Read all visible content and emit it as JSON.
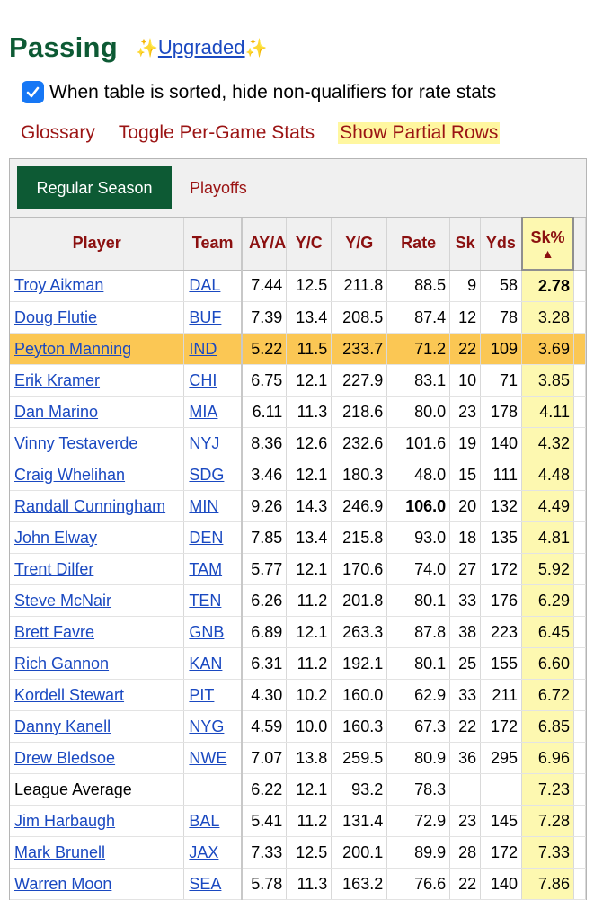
{
  "header": {
    "title": "Passing",
    "sparkle_left": "✨",
    "upgraded_label": "Upgraded",
    "sparkle_right": "✨"
  },
  "option": {
    "checked": true,
    "label": "When table is sorted, hide non-qualifiers for rate stats"
  },
  "links": {
    "glossary": "Glossary",
    "toggle": "Toggle Per-Game Stats",
    "partial": "Show Partial Rows"
  },
  "tabs": {
    "active": "Regular Season",
    "inactive": "Playoffs"
  },
  "columns": {
    "player": "Player",
    "team": "Team",
    "ya": "AY/A",
    "yc": "Y/C",
    "yg": "Y/G",
    "rate": "Rate",
    "sk": "Sk",
    "yds": "Yds",
    "skpct": "Sk%",
    "sort_arrow": "▲"
  },
  "rows": [
    {
      "player": "Troy Aikman",
      "team": "DAL",
      "ya": "7.44",
      "yc": "12.5",
      "yg": "211.8",
      "rate": "88.5",
      "sk": "9",
      "yds": "58",
      "skpct": "2.78"
    },
    {
      "player": "Doug Flutie",
      "team": "BUF",
      "ya": "7.39",
      "yc": "13.4",
      "yg": "208.5",
      "rate": "87.4",
      "sk": "12",
      "yds": "78",
      "skpct": "3.28"
    },
    {
      "player": "Peyton Manning",
      "team": "IND",
      "ya": "5.22",
      "yc": "11.5",
      "yg": "233.7",
      "rate": "71.2",
      "sk": "22",
      "yds": "109",
      "skpct": "3.69"
    },
    {
      "player": "Erik Kramer",
      "team": "CHI",
      "ya": "6.75",
      "yc": "12.1",
      "yg": "227.9",
      "rate": "83.1",
      "sk": "10",
      "yds": "71",
      "skpct": "3.85"
    },
    {
      "player": "Dan Marino",
      "team": "MIA",
      "ya": "6.11",
      "yc": "11.3",
      "yg": "218.6",
      "rate": "80.0",
      "sk": "23",
      "yds": "178",
      "skpct": "4.11"
    },
    {
      "player": "Vinny Testaverde",
      "team": "NYJ",
      "ya": "8.36",
      "yc": "12.6",
      "yg": "232.6",
      "rate": "101.6",
      "sk": "19",
      "yds": "140",
      "skpct": "4.32"
    },
    {
      "player": "Craig Whelihan",
      "team": "SDG",
      "ya": "3.46",
      "yc": "12.1",
      "yg": "180.3",
      "rate": "48.0",
      "sk": "15",
      "yds": "111",
      "skpct": "4.48"
    },
    {
      "player": "Randall Cunningham",
      "team": "MIN",
      "ya": "9.26",
      "yc": "14.3",
      "yg": "246.9",
      "rate": "106.0",
      "sk": "20",
      "yds": "132",
      "skpct": "4.49"
    },
    {
      "player": "John Elway",
      "team": "DEN",
      "ya": "7.85",
      "yc": "13.4",
      "yg": "215.8",
      "rate": "93.0",
      "sk": "18",
      "yds": "135",
      "skpct": "4.81"
    },
    {
      "player": "Trent Dilfer",
      "team": "TAM",
      "ya": "5.77",
      "yc": "12.1",
      "yg": "170.6",
      "rate": "74.0",
      "sk": "27",
      "yds": "172",
      "skpct": "5.92"
    },
    {
      "player": "Steve McNair",
      "team": "TEN",
      "ya": "6.26",
      "yc": "11.2",
      "yg": "201.8",
      "rate": "80.1",
      "sk": "33",
      "yds": "176",
      "skpct": "6.29"
    },
    {
      "player": "Brett Favre",
      "team": "GNB",
      "ya": "6.89",
      "yc": "12.1",
      "yg": "263.3",
      "rate": "87.8",
      "sk": "38",
      "yds": "223",
      "skpct": "6.45"
    },
    {
      "player": "Rich Gannon",
      "team": "KAN",
      "ya": "6.31",
      "yc": "11.2",
      "yg": "192.1",
      "rate": "80.1",
      "sk": "25",
      "yds": "155",
      "skpct": "6.60"
    },
    {
      "player": "Kordell Stewart",
      "team": "PIT",
      "ya": "4.30",
      "yc": "10.2",
      "yg": "160.0",
      "rate": "62.9",
      "sk": "33",
      "yds": "211",
      "skpct": "6.72"
    },
    {
      "player": "Danny Kanell",
      "team": "NYG",
      "ya": "4.59",
      "yc": "10.0",
      "yg": "160.3",
      "rate": "67.3",
      "sk": "22",
      "yds": "172",
      "skpct": "6.85"
    },
    {
      "player": "Drew Bledsoe",
      "team": "NWE",
      "ya": "7.07",
      "yc": "13.8",
      "yg": "259.5",
      "rate": "80.9",
      "sk": "36",
      "yds": "295",
      "skpct": "6.96"
    },
    {
      "player": "League Average",
      "team": "",
      "ya": "6.22",
      "yc": "12.1",
      "yg": "93.2",
      "rate": "78.3",
      "sk": "",
      "yds": "",
      "skpct": "7.23"
    },
    {
      "player": "Jim Harbaugh",
      "team": "BAL",
      "ya": "5.41",
      "yc": "11.2",
      "yg": "131.4",
      "rate": "72.9",
      "sk": "23",
      "yds": "145",
      "skpct": "7.28"
    },
    {
      "player": "Mark Brunell",
      "team": "JAX",
      "ya": "7.33",
      "yc": "12.5",
      "yg": "200.1",
      "rate": "89.9",
      "sk": "28",
      "yds": "172",
      "skpct": "7.33"
    },
    {
      "player": "Warren Moon",
      "team": "SEA",
      "ya": "5.78",
      "yc": "11.3",
      "yg": "163.2",
      "rate": "76.6",
      "sk": "22",
      "yds": "140",
      "skpct": "7.86"
    }
  ],
  "colors": {
    "title": "#0d5a34",
    "link": "#1a49c1",
    "header_text": "#8b1010",
    "highlight": "#fbc754",
    "sort_col": "#fdf8b0"
  }
}
